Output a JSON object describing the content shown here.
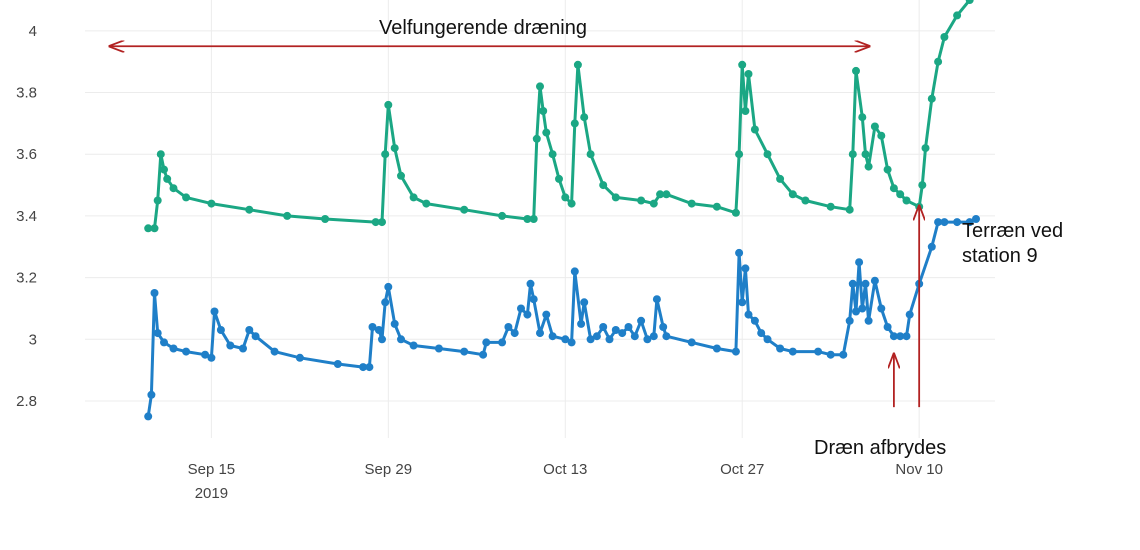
{
  "chart_data": {
    "type": "line",
    "x_type": "date",
    "xlim": [
      "2019-09-05",
      "2019-11-16"
    ],
    "ylim": [
      2.68,
      4.1
    ],
    "x_ticks": [
      {
        "date": "2019-09-15",
        "label": "Sep 15",
        "sublabel": "2019"
      },
      {
        "date": "2019-09-29",
        "label": "Sep 29"
      },
      {
        "date": "2019-10-13",
        "label": "Oct 13"
      },
      {
        "date": "2019-10-27",
        "label": "Oct 27"
      },
      {
        "date": "2019-11-10",
        "label": "Nov 10"
      }
    ],
    "y_ticks": [
      {
        "value": 2.8,
        "label": "2.8"
      },
      {
        "value": 3.0,
        "label": "3"
      },
      {
        "value": 3.2,
        "label": "3.2"
      },
      {
        "value": 3.4,
        "label": "3.4"
      },
      {
        "value": 3.6,
        "label": "3.6"
      },
      {
        "value": 3.8,
        "label": "3.8"
      },
      {
        "value": 4.0,
        "label": "4"
      }
    ],
    "grid": true,
    "legend": "none",
    "series": [
      {
        "color": "#1ba784",
        "points": [
          [
            "2019-09-10 00:00",
            3.36
          ],
          [
            "2019-09-10 12:00",
            3.36
          ],
          [
            "2019-09-10 18:00",
            3.45
          ],
          [
            "2019-09-11 00:00",
            3.6
          ],
          [
            "2019-09-11 06:00",
            3.55
          ],
          [
            "2019-09-11 12:00",
            3.52
          ],
          [
            "2019-09-12 00:00",
            3.49
          ],
          [
            "2019-09-13 00:00",
            3.46
          ],
          [
            "2019-09-15 00:00",
            3.44
          ],
          [
            "2019-09-18 00:00",
            3.42
          ],
          [
            "2019-09-21 00:00",
            3.4
          ],
          [
            "2019-09-24 00:00",
            3.39
          ],
          [
            "2019-09-28 00:00",
            3.38
          ],
          [
            "2019-09-28 12:00",
            3.38
          ],
          [
            "2019-09-28 18:00",
            3.6
          ],
          [
            "2019-09-29 00:00",
            3.76
          ],
          [
            "2019-09-29 12:00",
            3.62
          ],
          [
            "2019-09-30 00:00",
            3.53
          ],
          [
            "2019-10-01 00:00",
            3.46
          ],
          [
            "2019-10-02 00:00",
            3.44
          ],
          [
            "2019-10-05 00:00",
            3.42
          ],
          [
            "2019-10-08 00:00",
            3.4
          ],
          [
            "2019-10-10 00:00",
            3.39
          ],
          [
            "2019-10-10 12:00",
            3.39
          ],
          [
            "2019-10-10 18:00",
            3.65
          ],
          [
            "2019-10-11 00:00",
            3.82
          ],
          [
            "2019-10-11 06:00",
            3.74
          ],
          [
            "2019-10-11 12:00",
            3.67
          ],
          [
            "2019-10-12 00:00",
            3.6
          ],
          [
            "2019-10-12 12:00",
            3.52
          ],
          [
            "2019-10-13 00:00",
            3.46
          ],
          [
            "2019-10-13 12:00",
            3.44
          ],
          [
            "2019-10-13 18:00",
            3.7
          ],
          [
            "2019-10-14 00:00",
            3.89
          ],
          [
            "2019-10-14 12:00",
            3.72
          ],
          [
            "2019-10-15 00:00",
            3.6
          ],
          [
            "2019-10-16 00:00",
            3.5
          ],
          [
            "2019-10-17 00:00",
            3.46
          ],
          [
            "2019-10-19 00:00",
            3.45
          ],
          [
            "2019-10-20 00:00",
            3.44
          ],
          [
            "2019-10-20 12:00",
            3.47
          ],
          [
            "2019-10-21 00:00",
            3.47
          ],
          [
            "2019-10-23 00:00",
            3.44
          ],
          [
            "2019-10-25 00:00",
            3.43
          ],
          [
            "2019-10-26 12:00",
            3.41
          ],
          [
            "2019-10-26 18:00",
            3.6
          ],
          [
            "2019-10-27 00:00",
            3.89
          ],
          [
            "2019-10-27 06:00",
            3.74
          ],
          [
            "2019-10-27 12:00",
            3.86
          ],
          [
            "2019-10-28 00:00",
            3.68
          ],
          [
            "2019-10-29 00:00",
            3.6
          ],
          [
            "2019-10-30 00:00",
            3.52
          ],
          [
            "2019-10-31 00:00",
            3.47
          ],
          [
            "2019-11-01 00:00",
            3.45
          ],
          [
            "2019-11-03 00:00",
            3.43
          ],
          [
            "2019-11-04 12:00",
            3.42
          ],
          [
            "2019-11-04 18:00",
            3.6
          ],
          [
            "2019-11-05 00:00",
            3.87
          ],
          [
            "2019-11-05 12:00",
            3.72
          ],
          [
            "2019-11-05 18:00",
            3.6
          ],
          [
            "2019-11-06 00:00",
            3.56
          ],
          [
            "2019-11-06 12:00",
            3.69
          ],
          [
            "2019-11-07 00:00",
            3.66
          ],
          [
            "2019-11-07 12:00",
            3.55
          ],
          [
            "2019-11-08 00:00",
            3.49
          ],
          [
            "2019-11-08 12:00",
            3.47
          ],
          [
            "2019-11-09 00:00",
            3.45
          ],
          [
            "2019-11-10 00:00",
            3.43
          ],
          [
            "2019-11-10 06:00",
            3.5
          ],
          [
            "2019-11-10 12:00",
            3.62
          ],
          [
            "2019-11-11 00:00",
            3.78
          ],
          [
            "2019-11-11 12:00",
            3.9
          ],
          [
            "2019-11-12 00:00",
            3.98
          ],
          [
            "2019-11-13 00:00",
            4.05
          ],
          [
            "2019-11-14 00:00",
            4.1
          ]
        ]
      },
      {
        "color": "#1f7fc8",
        "points": [
          [
            "2019-09-10 00:00",
            2.75
          ],
          [
            "2019-09-10 06:00",
            2.82
          ],
          [
            "2019-09-10 12:00",
            3.15
          ],
          [
            "2019-09-10 18:00",
            3.02
          ],
          [
            "2019-09-11 06:00",
            2.99
          ],
          [
            "2019-09-12 00:00",
            2.97
          ],
          [
            "2019-09-13 00:00",
            2.96
          ],
          [
            "2019-09-14 12:00",
            2.95
          ],
          [
            "2019-09-15 00:00",
            2.94
          ],
          [
            "2019-09-15 06:00",
            3.09
          ],
          [
            "2019-09-15 18:00",
            3.03
          ],
          [
            "2019-09-16 12:00",
            2.98
          ],
          [
            "2019-09-17 12:00",
            2.97
          ],
          [
            "2019-09-18 00:00",
            3.03
          ],
          [
            "2019-09-18 12:00",
            3.01
          ],
          [
            "2019-09-20 00:00",
            2.96
          ],
          [
            "2019-09-22 00:00",
            2.94
          ],
          [
            "2019-09-25 00:00",
            2.92
          ],
          [
            "2019-09-27 00:00",
            2.91
          ],
          [
            "2019-09-27 12:00",
            2.91
          ],
          [
            "2019-09-27 18:00",
            3.04
          ],
          [
            "2019-09-28 06:00",
            3.03
          ],
          [
            "2019-09-28 12:00",
            3.0
          ],
          [
            "2019-09-28 18:00",
            3.12
          ],
          [
            "2019-09-29 00:00",
            3.17
          ],
          [
            "2019-09-29 12:00",
            3.05
          ],
          [
            "2019-09-30 00:00",
            3.0
          ],
          [
            "2019-10-01 00:00",
            2.98
          ],
          [
            "2019-10-03 00:00",
            2.97
          ],
          [
            "2019-10-05 00:00",
            2.96
          ],
          [
            "2019-10-06 12:00",
            2.95
          ],
          [
            "2019-10-06 18:00",
            2.99
          ],
          [
            "2019-10-08 00:00",
            2.99
          ],
          [
            "2019-10-08 12:00",
            3.04
          ],
          [
            "2019-10-09 00:00",
            3.02
          ],
          [
            "2019-10-09 12:00",
            3.1
          ],
          [
            "2019-10-10 00:00",
            3.08
          ],
          [
            "2019-10-10 06:00",
            3.18
          ],
          [
            "2019-10-10 12:00",
            3.13
          ],
          [
            "2019-10-11 00:00",
            3.02
          ],
          [
            "2019-10-11 12:00",
            3.08
          ],
          [
            "2019-10-12 00:00",
            3.01
          ],
          [
            "2019-10-13 00:00",
            3.0
          ],
          [
            "2019-10-13 12:00",
            2.99
          ],
          [
            "2019-10-13 18:00",
            3.22
          ],
          [
            "2019-10-14 06:00",
            3.05
          ],
          [
            "2019-10-14 12:00",
            3.12
          ],
          [
            "2019-10-15 00:00",
            3.0
          ],
          [
            "2019-10-15 12:00",
            3.01
          ],
          [
            "2019-10-16 00:00",
            3.04
          ],
          [
            "2019-10-16 12:00",
            3.0
          ],
          [
            "2019-10-17 00:00",
            3.03
          ],
          [
            "2019-10-17 12:00",
            3.02
          ],
          [
            "2019-10-18 00:00",
            3.04
          ],
          [
            "2019-10-18 12:00",
            3.01
          ],
          [
            "2019-10-19 00:00",
            3.06
          ],
          [
            "2019-10-19 12:00",
            3.0
          ],
          [
            "2019-10-20 00:00",
            3.01
          ],
          [
            "2019-10-20 06:00",
            3.13
          ],
          [
            "2019-10-20 18:00",
            3.04
          ],
          [
            "2019-10-21 00:00",
            3.01
          ],
          [
            "2019-10-23 00:00",
            2.99
          ],
          [
            "2019-10-25 00:00",
            2.97
          ],
          [
            "2019-10-26 12:00",
            2.96
          ],
          [
            "2019-10-26 18:00",
            3.28
          ],
          [
            "2019-10-27 00:00",
            3.12
          ],
          [
            "2019-10-27 06:00",
            3.23
          ],
          [
            "2019-10-27 12:00",
            3.08
          ],
          [
            "2019-10-28 00:00",
            3.06
          ],
          [
            "2019-10-28 12:00",
            3.02
          ],
          [
            "2019-10-29 00:00",
            3.0
          ],
          [
            "2019-10-30 00:00",
            2.97
          ],
          [
            "2019-10-31 00:00",
            2.96
          ],
          [
            "2019-11-02 00:00",
            2.96
          ],
          [
            "2019-11-03 00:00",
            2.95
          ],
          [
            "2019-11-04 00:00",
            2.95
          ],
          [
            "2019-11-04 12:00",
            3.06
          ],
          [
            "2019-11-04 18:00",
            3.18
          ],
          [
            "2019-11-05 00:00",
            3.09
          ],
          [
            "2019-11-05 06:00",
            3.25
          ],
          [
            "2019-11-05 12:00",
            3.1
          ],
          [
            "2019-11-05 18:00",
            3.18
          ],
          [
            "2019-11-06 00:00",
            3.06
          ],
          [
            "2019-11-06 12:00",
            3.19
          ],
          [
            "2019-11-07 00:00",
            3.1
          ],
          [
            "2019-11-07 12:00",
            3.04
          ],
          [
            "2019-11-08 00:00",
            3.01
          ],
          [
            "2019-11-08 12:00",
            3.01
          ],
          [
            "2019-11-09 00:00",
            3.01
          ],
          [
            "2019-11-09 06:00",
            3.08
          ],
          [
            "2019-11-10 00:00",
            3.18
          ],
          [
            "2019-11-11 00:00",
            3.3
          ],
          [
            "2019-11-11 12:00",
            3.38
          ],
          [
            "2019-11-12 00:00",
            3.38
          ],
          [
            "2019-11-13 00:00",
            3.38
          ],
          [
            "2019-11-14 00:00",
            3.38
          ],
          [
            "2019-11-14 12:00",
            3.39
          ]
        ]
      }
    ],
    "annotations": {
      "top_label": "Velfungerende dræning",
      "range_arrow": {
        "from": "2019-09-07",
        "to": "2019-11-06",
        "y": 3.95,
        "color": "#b22222"
      },
      "terrain_label_line1": "Terræn ved",
      "terrain_label_line2": "station 9",
      "drain_label": "Dræn afbrydes",
      "drain_arrows": [
        {
          "date": "2019-11-08",
          "from_y": 2.78,
          "to_y": 2.95,
          "color": "#b22222"
        },
        {
          "date": "2019-11-10",
          "from_y": 2.78,
          "to_y": 3.43,
          "color": "#b22222"
        }
      ]
    }
  }
}
